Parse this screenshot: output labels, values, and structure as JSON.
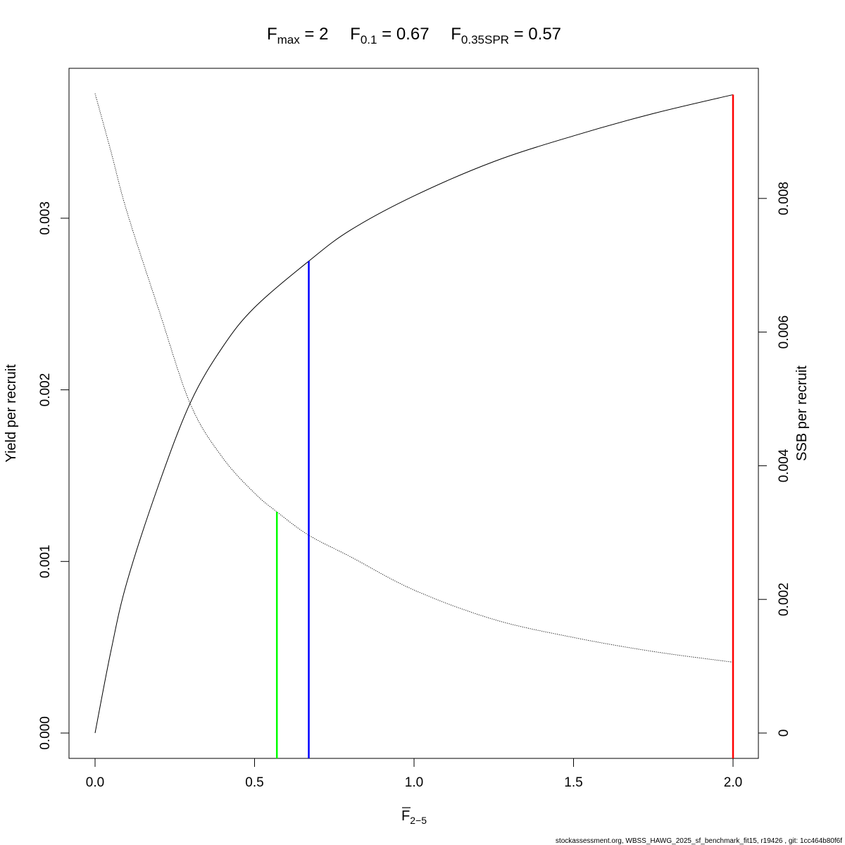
{
  "chart_data": {
    "type": "line",
    "title": {
      "parts": [
        {
          "main": "F",
          "sub": "max",
          "value": "2"
        },
        {
          "main": "F",
          "sub": "0.1",
          "value": "0.67"
        },
        {
          "main": "F",
          "sub": "0.35SPR",
          "value": "0.57"
        }
      ]
    },
    "xlabel": {
      "main": "F",
      "sub": "2−5",
      "overbar": true
    },
    "ylabel_left": "Yield per recruit",
    "ylabel_right": "SSB per recruit",
    "xlim": [
      0,
      2
    ],
    "x_ticks": [
      "0.0",
      "0.5",
      "1.0",
      "1.5",
      "2.0"
    ],
    "y_left_ticks": [
      "0.000",
      "0.001",
      "0.002",
      "0.003"
    ],
    "y_right_ticks": [
      "0",
      "0.002",
      "0.004",
      "0.006",
      "0.008"
    ],
    "grid": false,
    "series": [
      {
        "axis": "left",
        "style": "solid",
        "color": "#000000",
        "x": [
          0,
          0.05,
          0.1,
          0.2,
          0.3,
          0.4,
          0.5,
          0.67,
          0.8,
          1.0,
          1.25,
          1.5,
          1.75,
          2.0
        ],
        "y": [
          0,
          0.00048,
          0.00088,
          0.00145,
          0.00193,
          0.00225,
          0.00248,
          0.00275,
          0.00293,
          0.00313,
          0.00333,
          0.00348,
          0.00361,
          0.00372
        ]
      },
      {
        "axis": "right",
        "style": "dotted",
        "color": "#000000",
        "x": [
          0,
          0.05,
          0.1,
          0.2,
          0.3,
          0.4,
          0.5,
          0.57,
          0.67,
          0.8,
          1.0,
          1.25,
          1.5,
          1.75,
          2.0
        ],
        "y": [
          0.00957,
          0.0087,
          0.0078,
          0.00633,
          0.00491,
          0.00412,
          0.00359,
          0.00331,
          0.00296,
          0.00264,
          0.00214,
          0.0017,
          0.00143,
          0.00122,
          0.00106
        ]
      }
    ],
    "reference_lines": [
      {
        "x": 0.57,
        "to_axis": "right",
        "top": 0.00331,
        "color": "#00ff00"
      },
      {
        "x": 0.67,
        "to_axis": "left",
        "top": 0.00275,
        "color": "#0000ff"
      },
      {
        "x": 2.0,
        "to_axis": "left",
        "top": 0.00372,
        "color": "#ff0000"
      }
    ]
  },
  "footer": "stockassessment.org, WBSS_HAWG_2025_sf_benchmark_fit15, r19426 , git: 1cc464b80f6f"
}
